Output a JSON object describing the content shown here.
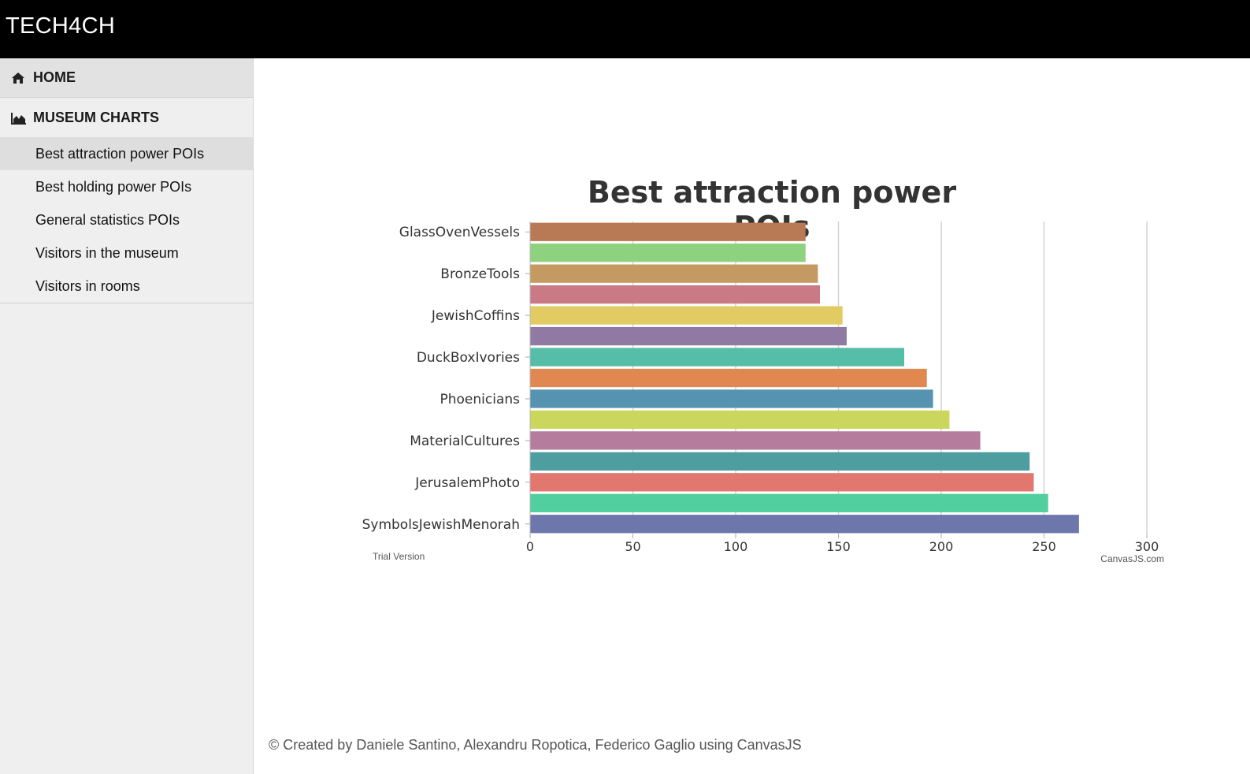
{
  "app": {
    "brand": "TECH4CH"
  },
  "sidebar": {
    "home": {
      "label": "HOME",
      "icon": "home-icon"
    },
    "charts": {
      "label": "MUSEUM CHARTS",
      "icon": "area-chart-icon"
    },
    "items": [
      {
        "label": "Best attraction power POIs",
        "active": true
      },
      {
        "label": "Best holding power POIs",
        "active": false
      },
      {
        "label": "General statistics POIs",
        "active": false
      },
      {
        "label": "Visitors in the museum",
        "active": false
      },
      {
        "label": "Visitors in rooms",
        "active": false
      }
    ]
  },
  "chart_data": {
    "type": "bar",
    "orientation": "horizontal",
    "title": "Best attraction power POIs",
    "categories": [
      "GlassOvenVessels",
      "",
      "BronzeTools",
      "",
      "JewishCoffins",
      "",
      "DuckBoxIvories",
      "",
      "Phoenicians",
      "",
      "MaterialCultures",
      "",
      "JerusalemPhoto",
      "",
      "SymbolsJewishMenorah"
    ],
    "values": [
      134,
      134,
      140,
      141,
      152,
      154,
      182,
      193,
      196,
      204,
      219,
      243,
      245,
      252,
      267
    ],
    "colors": [
      "#b87a55",
      "#8ed17e",
      "#c59a62",
      "#c97a84",
      "#e2cb63",
      "#9079a3",
      "#55bda8",
      "#e0884f",
      "#5593b0",
      "#cad65c",
      "#b57c9e",
      "#4e9d9f",
      "#e27770",
      "#52cf9e",
      "#6e77ac"
    ],
    "x_ticks": [
      0,
      50,
      100,
      150,
      200,
      250,
      300
    ],
    "xlim": [
      0,
      300
    ],
    "grid": true,
    "watermark_left": "Trial Version",
    "watermark_right": "CanvasJS.com"
  },
  "footer": {
    "text": "© Created by Daniele Santino, Alexandru Ropotica, Federico Gaglio using CanvasJS"
  }
}
